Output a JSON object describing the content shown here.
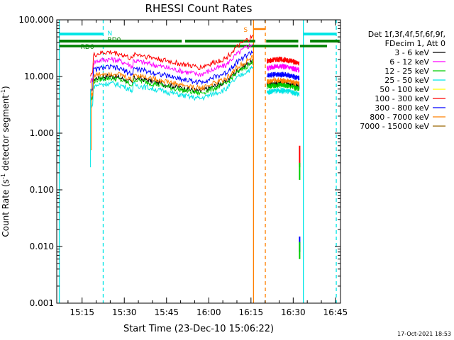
{
  "chart_data": {
    "type": "line",
    "title": "RHESSI Count Rates",
    "xlabel": "Start Time (23-Dec-10 15:06:22)",
    "ylabel_main": "Count Rate (s",
    "ylabel_exp1": "-1",
    "ylabel_mid": " detector segment",
    "ylabel_exp2": "-1",
    "ylabel_end": ")",
    "y_scale": "log",
    "ylim": [
      0.001,
      100
    ],
    "xlim_minutes": [
      15.1,
      16.78
    ],
    "x_ticks": [
      {
        "label": "15:15",
        "t": 15.25
      },
      {
        "label": "15:30",
        "t": 15.5
      },
      {
        "label": "15:45",
        "t": 15.75
      },
      {
        "label": "16:00",
        "t": 16.0
      },
      {
        "label": "16:15",
        "t": 16.25
      },
      {
        "label": "16:30",
        "t": 16.5
      },
      {
        "label": "16:45",
        "t": 16.75
      }
    ],
    "y_ticks": [
      {
        "label": "100.000",
        "v": 100
      },
      {
        "label": "10.000",
        "v": 10
      },
      {
        "label": "1.000",
        "v": 1
      },
      {
        "label": "0.100",
        "v": 0.1
      },
      {
        "label": "0.010",
        "v": 0.01
      },
      {
        "label": "0.001",
        "v": 0.001
      }
    ],
    "legend_header": [
      "Det 1f,3f,4f,5f,6f,9f,",
      "FDecim 1, Att 0"
    ],
    "legend_placement": "right",
    "series": [
      {
        "name": "3 - 6 keV",
        "color": "#000000",
        "factor": 0.78
      },
      {
        "name": "6 - 12 keV",
        "color": "#ff00ff",
        "factor": 1.55
      },
      {
        "name": "12 - 25 keV",
        "color": "#00cc00",
        "factor": 0.72
      },
      {
        "name": "25 - 50 keV",
        "color": "#00e5e5",
        "factor": 0.58
      },
      {
        "name": "50 - 100 keV",
        "color": "#ffff00",
        "factor": 0.0
      },
      {
        "name": "100 - 300 keV",
        "color": "#ff0000",
        "factor": 2.05
      },
      {
        "name": "300 - 800 keV",
        "color": "#0000ff",
        "factor": 1.12
      },
      {
        "name": "800 - 7000 keV",
        "color": "#ff8000",
        "factor": 0.88
      },
      {
        "name": "7000 - 15000 keV",
        "color": "#996600",
        "factor": 0.0
      }
    ],
    "flag_labels": {
      "n": "N",
      "rd0": "RD0",
      "rd6": "RD6",
      "s": "S"
    },
    "footer_timestamp": "17-Oct-2021 18:53"
  }
}
